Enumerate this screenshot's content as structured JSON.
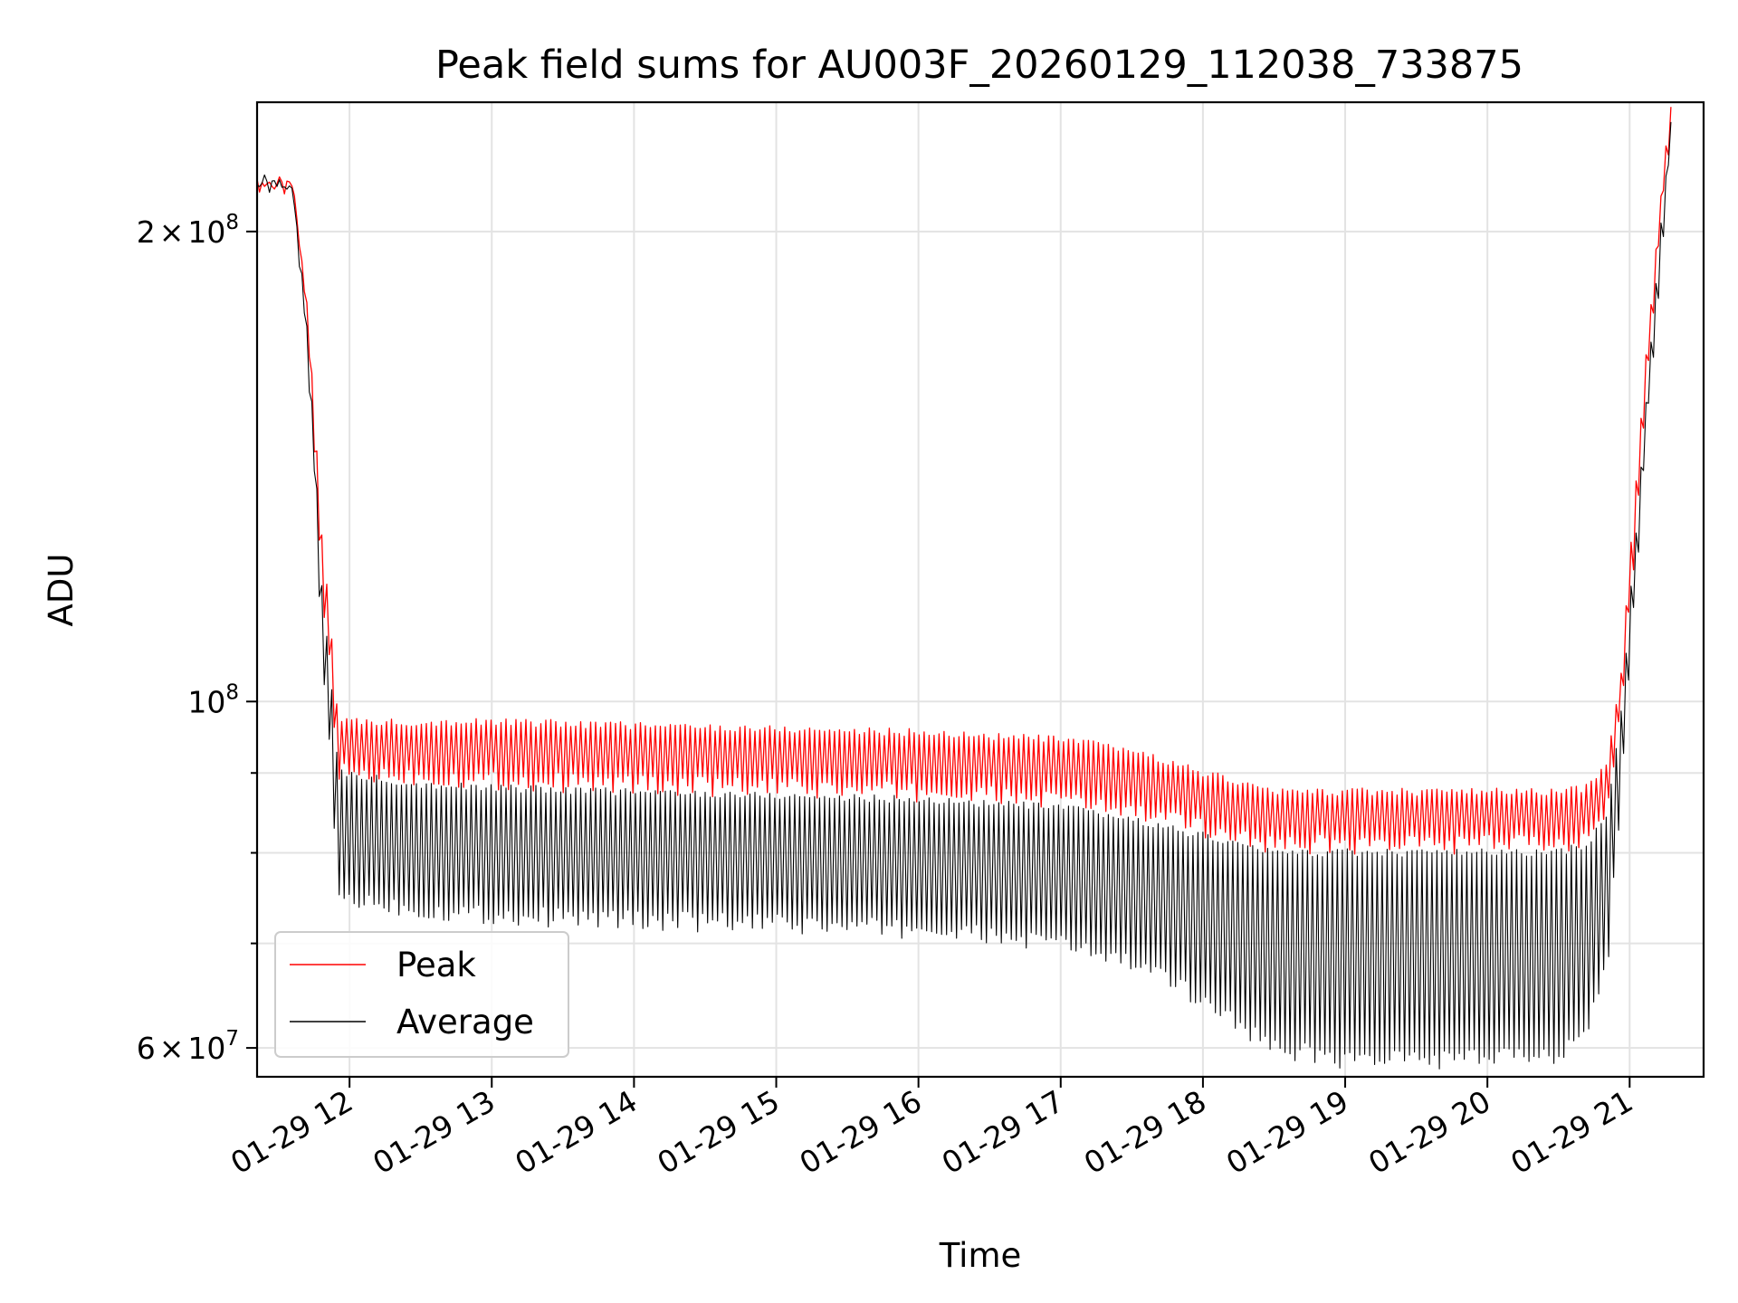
{
  "chart_data": {
    "type": "line",
    "title": "Peak field sums for AU003F_20260129_112038_733875",
    "xlabel": "Time",
    "ylabel": "ADU",
    "yscale": "log",
    "ylim": [
      57500000,
      242000000
    ],
    "xlim_hours": [
      11.35,
      21.52
    ],
    "grid": true,
    "legend_position": "lower-left",
    "x_ticks": [
      {
        "hour": 12,
        "label": "01-29 12"
      },
      {
        "hour": 13,
        "label": "01-29 13"
      },
      {
        "hour": 14,
        "label": "01-29 14"
      },
      {
        "hour": 15,
        "label": "01-29 15"
      },
      {
        "hour": 16,
        "label": "01-29 16"
      },
      {
        "hour": 17,
        "label": "01-29 17"
      },
      {
        "hour": 18,
        "label": "01-29 18"
      },
      {
        "hour": 19,
        "label": "01-29 19"
      },
      {
        "hour": 20,
        "label": "01-29 20"
      },
      {
        "hour": 21,
        "label": "01-29 21"
      }
    ],
    "y_major_ticks": [
      {
        "value": 60000000,
        "base": "6",
        "sup": "7"
      },
      {
        "value": 100000000,
        "base": "",
        "sup": "8"
      },
      {
        "value": 200000000,
        "base": "2",
        "sup": "8"
      }
    ],
    "y_minor_ticks": [
      70000000,
      80000000,
      90000000
    ],
    "envelope": {
      "hours": [
        11.35,
        11.6,
        11.7,
        11.8,
        11.92,
        12.5,
        13.0,
        14.0,
        15.0,
        16.0,
        17.0,
        17.5,
        18.0,
        18.5,
        19.0,
        20.0,
        20.5,
        20.7,
        20.85,
        20.95,
        21.05,
        21.15,
        21.25,
        21.3
      ],
      "peak_top": [
        215000000,
        214000000,
        180000000,
        130000000,
        97000000,
        97000000,
        97000000,
        96500000,
        96000000,
        95500000,
        94500000,
        93000000,
        90000000,
        87500000,
        87500000,
        87500000,
        87500000,
        88000000,
        92000000,
        106000000,
        140000000,
        180000000,
        225000000,
        245000000
      ],
      "peak_bottom": [
        215000000,
        213000000,
        175000000,
        120000000,
        90000000,
        89500000,
        89000000,
        88500000,
        88000000,
        87500000,
        86500000,
        85000000,
        83000000,
        81000000,
        81000000,
        81000000,
        81000000,
        82000000,
        86000000,
        100000000,
        130000000,
        170000000,
        215000000,
        240000000
      ],
      "avg_top": [
        215000000,
        213000000,
        175000000,
        120000000,
        90000000,
        88500000,
        88000000,
        87500000,
        87000000,
        86500000,
        85500000,
        84000000,
        82000000,
        80000000,
        80000000,
        80000000,
        80000000,
        81000000,
        85000000,
        100000000,
        130000000,
        170000000,
        215000000,
        240000000
      ],
      "avg_bottom": [
        215000000,
        212000000,
        170000000,
        110000000,
        75000000,
        73500000,
        73000000,
        72500000,
        72000000,
        71500000,
        70000000,
        68000000,
        64500000,
        60000000,
        59000000,
        59000000,
        59500000,
        62000000,
        68000000,
        90000000,
        120000000,
        160000000,
        205000000,
        238000000
      ]
    },
    "oscillation_period_hours": 0.035,
    "series": [
      {
        "name": "Peak",
        "color": "#ff0000"
      },
      {
        "name": "Average",
        "color": "#000000"
      }
    ]
  }
}
